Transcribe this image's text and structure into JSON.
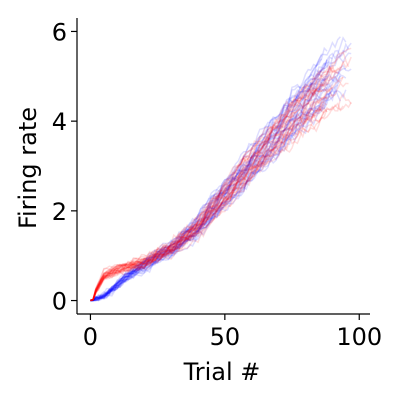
{
  "chart_data": {
    "type": "line",
    "title": "",
    "xlabel": "Trial #",
    "ylabel": "Firing rate",
    "xlim": [
      -5,
      104
    ],
    "ylim": [
      -0.3,
      6.3
    ],
    "xticks": [
      0,
      50,
      100
    ],
    "xtick_labels": [
      "0",
      "50",
      "100"
    ],
    "yticks": [
      0,
      2,
      4,
      6
    ],
    "ytick_labels": [
      "0",
      "2",
      "4",
      "6"
    ],
    "grid": false,
    "legend": "none",
    "series_groups": [
      {
        "color": "#0000ff",
        "count": 30,
        "opacity": 0.13,
        "mean_curve": {
          "x": [
            0,
            5,
            10,
            15,
            20,
            30,
            40,
            50,
            60,
            70,
            80,
            90,
            96
          ],
          "y": [
            0.0,
            0.1,
            0.35,
            0.6,
            0.8,
            1.15,
            1.65,
            2.35,
            3.05,
            3.75,
            4.45,
            5.1,
            5.45
          ]
        }
      },
      {
        "color": "#ff0000",
        "count": 30,
        "opacity": 0.13,
        "mean_curve": {
          "x": [
            0,
            5,
            10,
            15,
            20,
            30,
            40,
            50,
            60,
            70,
            80,
            90,
            96
          ],
          "y": [
            0.0,
            0.55,
            0.7,
            0.78,
            0.85,
            1.15,
            1.65,
            2.35,
            3.05,
            3.7,
            4.3,
            4.75,
            4.95
          ]
        }
      }
    ]
  }
}
